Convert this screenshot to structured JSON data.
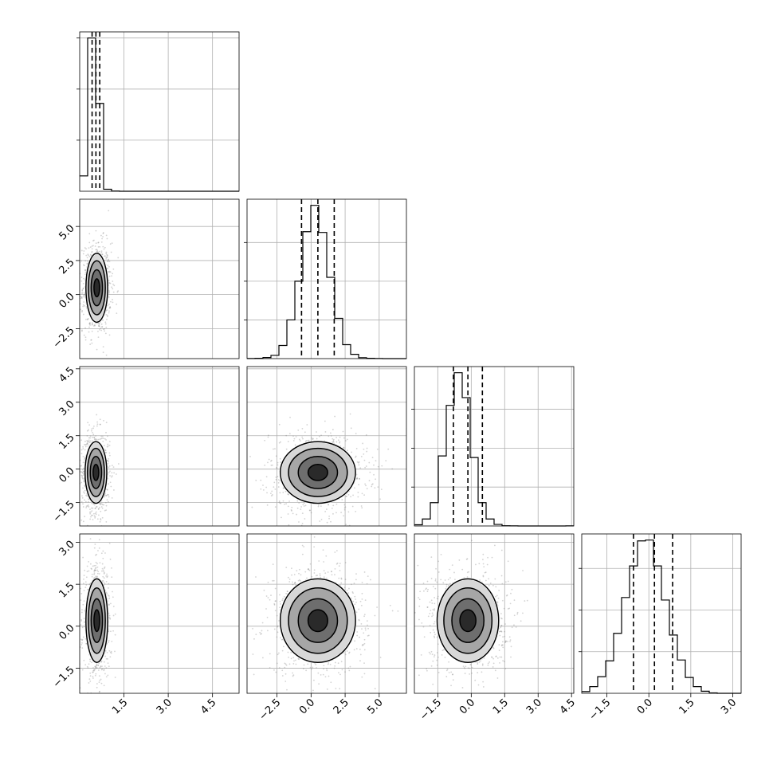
{
  "chart_data": {
    "type": "corner",
    "style": {
      "background": "#ffffff",
      "axes_color": "#000000",
      "grid": true,
      "grid_color": "#b0b0b0",
      "hist_color": "#000000",
      "scatter_color": "#808080",
      "density_shades": [
        "#d8d8d8",
        "#a6a6a6",
        "#6e6e6e",
        "#2a2a2a"
      ],
      "quantile_line_style": "dashed"
    },
    "parameters": [
      {
        "range": [
          0.0,
          5.4
        ],
        "ticks": [
          1.5,
          3.0,
          4.5
        ],
        "tick_labels": [
          "1.5",
          "3.0",
          "4.5"
        ],
        "hist": {
          "bin_edges": [
            0.0,
            0.27,
            0.54,
            0.81,
            1.08,
            1.35,
            1.62,
            1.89,
            2.16,
            2.43,
            2.7,
            2.97,
            3.24,
            3.51,
            3.78,
            4.05,
            4.32,
            4.59,
            4.86,
            5.13,
            5.4
          ],
          "counts": [
            300,
            3000,
            1720,
            40,
            5,
            0,
            0,
            0,
            0,
            0,
            0,
            0,
            0,
            0,
            0,
            0,
            0,
            0,
            0,
            0
          ],
          "grid_levels": [
            1000,
            2000,
            3000
          ]
        },
        "quantiles": [
          0.42,
          0.55,
          0.68
        ]
      },
      {
        "range": [
          -4.7,
          7.0
        ],
        "ticks": [
          -2.5,
          0.0,
          2.5,
          5.0
        ],
        "tick_labels": [
          "−2.5",
          "0.0",
          "2.5",
          "5.0"
        ],
        "hist": {
          "bin_edges": [
            -4.7,
            -4.115,
            -3.53,
            -2.945,
            -2.36,
            -1.775,
            -1.19,
            -0.605,
            -0.02,
            0.565,
            1.15,
            1.735,
            2.32,
            2.905,
            3.49,
            4.075,
            4.66,
            5.245,
            5.83,
            6.415,
            7.0
          ],
          "counts": [
            1,
            4,
            14,
            42,
            170,
            500,
            1000,
            1640,
            1980,
            1630,
            1050,
            520,
            180,
            55,
            12,
            4,
            1,
            0,
            0,
            0
          ],
          "grid_levels": [
            500,
            1000,
            1500
          ]
        },
        "quantiles": [
          -0.7,
          0.5,
          1.7
        ]
      },
      {
        "range": [
          -2.55,
          4.6
        ],
        "ticks": [
          -1.5,
          0.0,
          1.5,
          3.0,
          4.5
        ],
        "tick_labels": [
          "−1.5",
          "0.0",
          "1.5",
          "3.0",
          "4.5"
        ],
        "hist": {
          "bin_edges": [
            -2.55,
            -2.1925,
            -1.835,
            -1.4775,
            -1.12,
            -0.7625,
            -0.405,
            -0.0475,
            0.31,
            0.6675,
            1.025,
            1.3825,
            1.74,
            2.0975,
            2.455,
            2.8125,
            3.17,
            3.5275,
            3.885,
            4.2425,
            4.6
          ],
          "counts": [
            15,
            90,
            300,
            900,
            1550,
            1970,
            1650,
            880,
            300,
            90,
            20,
            3,
            1,
            0,
            0,
            0,
            0,
            0,
            0,
            1
          ],
          "grid_levels": [
            500,
            1000,
            1500
          ]
        },
        "quantiles": [
          -0.8,
          -0.15,
          0.5
        ]
      },
      {
        "range": [
          -2.4,
          3.3
        ],
        "ticks": [
          -1.5,
          0.0,
          1.5,
          3.0
        ],
        "tick_labels": [
          "−1.5",
          "0.0",
          "1.5",
          "3.0"
        ],
        "hist": {
          "bin_edges": [
            -2.4,
            -2.115,
            -1.83,
            -1.545,
            -1.26,
            -0.975,
            -0.69,
            -0.405,
            -0.12,
            0.165,
            0.45,
            0.735,
            1.02,
            1.305,
            1.59,
            1.875,
            2.16,
            2.445,
            2.73,
            3.015,
            3.3
          ],
          "counts": [
            20,
            80,
            200,
            390,
            720,
            1150,
            1530,
            1830,
            1840,
            1530,
            1120,
            700,
            400,
            190,
            80,
            25,
            5,
            0,
            0,
            0
          ],
          "grid_levels": [
            500,
            1000,
            1500
          ]
        },
        "quantiles": [
          -0.55,
          0.2,
          0.85
        ]
      }
    ],
    "pairs": [
      {
        "x": 0,
        "y": 1,
        "center": [
          0.58,
          0.5
        ],
        "sd": [
          0.16,
          1.1
        ],
        "contour_radii_sd": [
          0.6,
          1.2,
          1.8,
          2.3
        ]
      },
      {
        "x": 0,
        "y": 2,
        "center": [
          0.55,
          -0.15
        ],
        "sd": [
          0.16,
          0.6
        ],
        "contour_radii_sd": [
          0.6,
          1.2,
          1.8,
          2.3
        ]
      },
      {
        "x": 1,
        "y": 2,
        "center": [
          0.5,
          -0.15
        ],
        "sd": [
          1.2,
          0.6
        ],
        "contour_radii_sd": [
          0.6,
          1.2,
          1.8,
          2.3
        ]
      },
      {
        "x": 0,
        "y": 3,
        "center": [
          0.58,
          0.2
        ],
        "sd": [
          0.16,
          0.65
        ],
        "contour_radii_sd": [
          0.6,
          1.2,
          1.8,
          2.3
        ]
      },
      {
        "x": 1,
        "y": 3,
        "center": [
          0.5,
          0.2
        ],
        "sd": [
          1.2,
          0.65
        ],
        "contour_radii_sd": [
          0.6,
          1.2,
          1.8,
          2.3
        ]
      },
      {
        "x": 2,
        "y": 3,
        "center": [
          -0.15,
          0.2
        ],
        "sd": [
          0.6,
          0.65
        ],
        "contour_radii_sd": [
          0.6,
          1.2,
          1.8,
          2.3
        ]
      }
    ]
  }
}
